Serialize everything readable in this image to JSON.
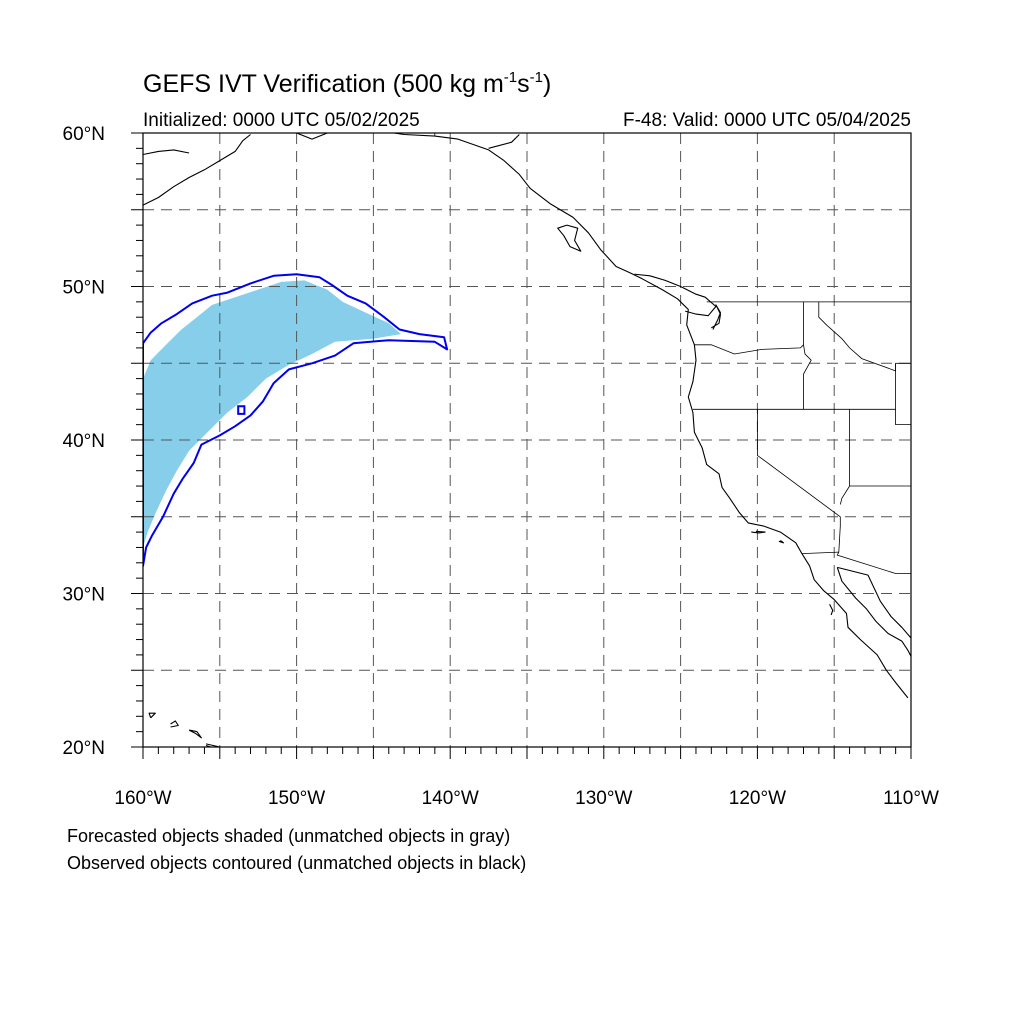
{
  "title": {
    "prefix": "GEFS IVT Verification (500 kg m",
    "exp1": "-1",
    "mid": "s",
    "exp2": "-1",
    "suffix": ")"
  },
  "initialized": "Initialized: 0000 UTC 05/02/2025",
  "valid": "F-48: Valid: 0000 UTC 05/04/2025",
  "legend_notes": [
    "Forecasted objects shaded (unmatched objects in gray)",
    "Observed objects contoured (unmatched objects in black)"
  ],
  "lat_labels": [
    {
      "lat": 60,
      "text": "60°N"
    },
    {
      "lat": 50,
      "text": "50°N"
    },
    {
      "lat": 40,
      "text": "40°N"
    },
    {
      "lat": 30,
      "text": "30°N"
    },
    {
      "lat": 20,
      "text": "20°N"
    }
  ],
  "lon_labels": [
    {
      "lon": -160,
      "text": "160°W"
    },
    {
      "lon": -150,
      "text": "150°W"
    },
    {
      "lon": -140,
      "text": "140°W"
    },
    {
      "lon": -130,
      "text": "130°W"
    },
    {
      "lon": -120,
      "text": "120°W"
    },
    {
      "lon": -110,
      "text": "110°W"
    }
  ],
  "map": {
    "lon_range": [
      -160,
      -110
    ],
    "lat_range": [
      20,
      60
    ],
    "grid_lon": [
      -155,
      -150,
      -145,
      -140,
      -135,
      -130,
      -125,
      -120,
      -115
    ],
    "grid_lat": [
      25,
      30,
      35,
      40,
      45,
      50,
      55
    ],
    "forecast_fill_color": "#87CEEB",
    "observed_contour_color": "#0000EE"
  },
  "forecast_object": [
    [
      -160,
      44
    ],
    [
      -159.5,
      45.2
    ],
    [
      -158.5,
      46.2
    ],
    [
      -157.5,
      47.2
    ],
    [
      -156.5,
      48
    ],
    [
      -155.5,
      48.8
    ],
    [
      -154,
      49.3
    ],
    [
      -152.5,
      49.8
    ],
    [
      -151,
      50.3
    ],
    [
      -149.5,
      50.4
    ],
    [
      -148,
      49.8
    ],
    [
      -147,
      49
    ],
    [
      -145.5,
      48.3
    ],
    [
      -144,
      47.6
    ],
    [
      -143.2,
      46.9
    ],
    [
      -145,
      46.6
    ],
    [
      -147.5,
      46.4
    ],
    [
      -149,
      45.6
    ],
    [
      -150.5,
      44.9
    ],
    [
      -152,
      44
    ],
    [
      -153.2,
      42.8
    ],
    [
      -154.5,
      41.8
    ],
    [
      -155.8,
      40.5
    ],
    [
      -157,
      39.3
    ],
    [
      -157.8,
      38
    ],
    [
      -158.5,
      36.7
    ],
    [
      -159.2,
      35.2
    ],
    [
      -159.7,
      34
    ],
    [
      -160,
      33
    ]
  ],
  "observed_object": [
    [
      -160,
      31.8
    ],
    [
      -159.8,
      33
    ],
    [
      -159.4,
      33.8
    ],
    [
      -158.7,
      35
    ],
    [
      -158,
      36.5
    ],
    [
      -157.4,
      37.5
    ],
    [
      -156.7,
      38.5
    ],
    [
      -156.2,
      39.7
    ],
    [
      -155,
      40.3
    ],
    [
      -154,
      40.9
    ],
    [
      -153,
      41.6
    ],
    [
      -152.2,
      42.5
    ],
    [
      -151.5,
      43.7
    ],
    [
      -150.5,
      44.6
    ],
    [
      -149,
      45
    ],
    [
      -147.5,
      45.5
    ],
    [
      -146.3,
      46.3
    ],
    [
      -144,
      46.5
    ],
    [
      -141,
      46.4
    ],
    [
      -140.2,
      45.9
    ],
    [
      -140.4,
      46.7
    ],
    [
      -142,
      46.9
    ],
    [
      -143.3,
      47.2
    ],
    [
      -144.3,
      48
    ],
    [
      -145.5,
      48.9
    ],
    [
      -146.7,
      49.4
    ],
    [
      -147.7,
      50.1
    ],
    [
      -148.5,
      50.6
    ],
    [
      -150,
      50.8
    ],
    [
      -151.5,
      50.7
    ],
    [
      -153,
      50.2
    ],
    [
      -154.5,
      49.6
    ],
    [
      -155.5,
      49.4
    ],
    [
      -156.8,
      48.9
    ],
    [
      -157.8,
      48.2
    ],
    [
      -158.8,
      47.6
    ],
    [
      -159.5,
      47
    ],
    [
      -160,
      46.3
    ]
  ],
  "observed_small_object": [
    [
      -153.8,
      41.7
    ],
    [
      -153.4,
      41.7
    ],
    [
      -153.4,
      42.2
    ],
    [
      -153.8,
      42.2
    ]
  ],
  "coastlines": [
    [
      [
        -160,
        55.3
      ],
      [
        -159,
        55.8
      ],
      [
        -158,
        56.5
      ],
      [
        -157,
        57.1
      ],
      [
        -156,
        57.6
      ],
      [
        -155,
        58.2
      ],
      [
        -154,
        58.8
      ],
      [
        -153.5,
        59.5
      ],
      [
        -153,
        59.9
      ]
    ],
    [
      [
        -160,
        58.6
      ],
      [
        -159,
        58.8
      ],
      [
        -158,
        58.9
      ],
      [
        -157,
        58.7
      ]
    ],
    [
      [
        -150,
        60
      ],
      [
        -149,
        59.6
      ],
      [
        -148,
        60
      ],
      [
        -146.5,
        60.8
      ],
      [
        -145,
        60.2
      ],
      [
        -143,
        59.9
      ],
      [
        -141,
        59.8
      ],
      [
        -139.5,
        59.6
      ],
      [
        -137.5,
        58.9
      ],
      [
        -136.5,
        58.2
      ],
      [
        -135.5,
        57.3
      ],
      [
        -134.8,
        56.4
      ],
      [
        -133.5,
        55.4
      ],
      [
        -132,
        54.5
      ],
      [
        -131,
        53.5
      ],
      [
        -130.2,
        52.4
      ],
      [
        -129.2,
        51.3
      ],
      [
        -128.3,
        50.9
      ],
      [
        -127.5,
        50.5
      ],
      [
        -126.2,
        49.8
      ],
      [
        -125.2,
        49.2
      ],
      [
        -124.5,
        48.5
      ],
      [
        -124.6,
        47.5
      ],
      [
        -124.1,
        46.2
      ],
      [
        -124,
        45.2
      ],
      [
        -124.2,
        43.8
      ],
      [
        -124.5,
        42.8
      ],
      [
        -124.2,
        41.8
      ],
      [
        -124.1,
        40.5
      ],
      [
        -123.6,
        39.5
      ],
      [
        -123.3,
        38.4
      ],
      [
        -122.5,
        37.8
      ],
      [
        -122.3,
        36.9
      ],
      [
        -121.8,
        36.2
      ],
      [
        -121.2,
        35.3
      ],
      [
        -120.6,
        34.6
      ],
      [
        -119.6,
        34.4
      ],
      [
        -118.5,
        34
      ],
      [
        -117.5,
        33.3
      ],
      [
        -117.1,
        32.6
      ],
      [
        -116.6,
        31.8
      ],
      [
        -116.3,
        30.9
      ],
      [
        -115.7,
        30.2
      ],
      [
        -115,
        29.6
      ],
      [
        -114.2,
        28.7
      ],
      [
        -114.1,
        27.8
      ],
      [
        -113.3,
        27
      ],
      [
        -112.2,
        26
      ],
      [
        -111.6,
        25
      ],
      [
        -111,
        24.2
      ],
      [
        -110.2,
        23.2
      ]
    ],
    [
      [
        -114.8,
        31.7
      ],
      [
        -114.5,
        30.8
      ],
      [
        -113.6,
        29.7
      ],
      [
        -112.9,
        29
      ],
      [
        -112.3,
        28.2
      ],
      [
        -111.5,
        27.4
      ],
      [
        -110.6,
        26.9
      ],
      [
        -110.2,
        26.3
      ],
      [
        -110,
        25.9
      ]
    ],
    [
      [
        -114.8,
        31.7
      ],
      [
        -113.6,
        31.4
      ],
      [
        -112.8,
        31.2
      ],
      [
        -112,
        29.5
      ],
      [
        -111.3,
        28.5
      ],
      [
        -110.6,
        27.8
      ],
      [
        -110,
        27.1
      ]
    ],
    [
      [
        -124.7,
        48.4
      ],
      [
        -124,
        48.2
      ],
      [
        -123.2,
        48.1
      ],
      [
        -122.7,
        48.7
      ],
      [
        -123.4,
        49.3
      ],
      [
        -124,
        49.5
      ],
      [
        -125,
        50
      ],
      [
        -126,
        50.4
      ],
      [
        -127,
        50.7
      ],
      [
        -128,
        50.8
      ]
    ],
    [
      [
        -123,
        47.3
      ],
      [
        -122.5,
        47.6
      ],
      [
        -122.4,
        48.2
      ],
      [
        -122.7,
        48.8
      ],
      [
        -122.4,
        48.3
      ],
      [
        -122.6,
        47.8
      ],
      [
        -122.9,
        47.2
      ]
    ],
    [
      [
        -132.4,
        54
      ],
      [
        -131.7,
        53.8
      ],
      [
        -131.9,
        53
      ],
      [
        -131.5,
        52.3
      ],
      [
        -132.2,
        52.6
      ],
      [
        -132.6,
        53.3
      ],
      [
        -133,
        53.8
      ],
      [
        -132.4,
        54
      ]
    ],
    [
      [
        -159.5,
        21.9
      ],
      [
        -159.2,
        22.2
      ],
      [
        -159.6,
        22.2
      ],
      [
        -159.5,
        21.9
      ]
    ],
    [
      [
        -158.2,
        21.3
      ],
      [
        -157.7,
        21.4
      ],
      [
        -157.9,
        21.7
      ],
      [
        -158.2,
        21.5
      ]
    ],
    [
      [
        -157,
        21.1
      ],
      [
        -156.6,
        20.9
      ],
      [
        -156.2,
        20.6
      ],
      [
        -156.5,
        21
      ],
      [
        -157,
        21.1
      ]
    ],
    [
      [
        -155.9,
        20.1
      ],
      [
        -155.3,
        19.9
      ],
      [
        -155,
        20
      ],
      [
        -155.9,
        20.2
      ]
    ],
    [
      [
        -120.4,
        34
      ],
      [
        -119.9,
        33.95
      ],
      [
        -119.5,
        34
      ],
      [
        -120.1,
        34.05
      ]
    ],
    [
      [
        -118.6,
        33.4
      ],
      [
        -118.3,
        33.3
      ],
      [
        -118.5,
        33.45
      ]
    ],
    [
      [
        -115.3,
        29.3
      ],
      [
        -115.1,
        28.9
      ],
      [
        -115.2,
        28.6
      ]
    ],
    [
      [
        -137.5,
        59
      ],
      [
        -136,
        59.4
      ],
      [
        -135.5,
        59.9
      ]
    ]
  ],
  "borders": [
    [
      [
        -141,
        60
      ],
      [
        -141,
        59.8
      ]
    ],
    [
      [
        -123.3,
        49
      ],
      [
        -110,
        49
      ]
    ],
    [
      [
        -124.1,
        46.2
      ],
      [
        -123,
        46.2
      ],
      [
        -121.5,
        45.6
      ],
      [
        -119.7,
        45.9
      ],
      [
        -117.2,
        46
      ],
      [
        -117,
        46.2
      ]
    ],
    [
      [
        -117,
        49
      ],
      [
        -117,
        46.2
      ],
      [
        -116.9,
        45.6
      ],
      [
        -116.5,
        45.2
      ],
      [
        -117,
        44.3
      ],
      [
        -117,
        42
      ]
    ],
    [
      [
        -124.2,
        42
      ],
      [
        -117,
        42
      ],
      [
        -114,
        42
      ],
      [
        -111,
        42
      ]
    ],
    [
      [
        -120,
        42
      ],
      [
        -120,
        39
      ],
      [
        -114.6,
        35
      ],
      [
        -114.6,
        34.4
      ],
      [
        -114.7,
        32.7
      ],
      [
        -114.8,
        32.5
      ],
      [
        -111,
        31.3
      ],
      [
        -110,
        31.3
      ]
    ],
    [
      [
        -117.1,
        32.6
      ],
      [
        -114.7,
        32.7
      ]
    ],
    [
      [
        -114,
        42
      ],
      [
        -114,
        37
      ],
      [
        -114.5,
        36.2
      ],
      [
        -114.6,
        35.8
      ]
    ],
    [
      [
        -114,
        37
      ],
      [
        -110,
        37
      ]
    ],
    [
      [
        -111,
        42
      ],
      [
        -111,
        41
      ],
      [
        -110,
        41
      ]
    ],
    [
      [
        -111,
        45
      ],
      [
        -110,
        45
      ]
    ],
    [
      [
        -111,
        45
      ],
      [
        -111,
        42
      ]
    ],
    [
      [
        -116,
        49
      ],
      [
        -116,
        48
      ],
      [
        -115.5,
        47.5
      ],
      [
        -114.5,
        46.6
      ],
      [
        -114,
        46
      ],
      [
        -113.2,
        45.3
      ],
      [
        -111,
        44.5
      ],
      [
        -111,
        45
      ]
    ]
  ]
}
